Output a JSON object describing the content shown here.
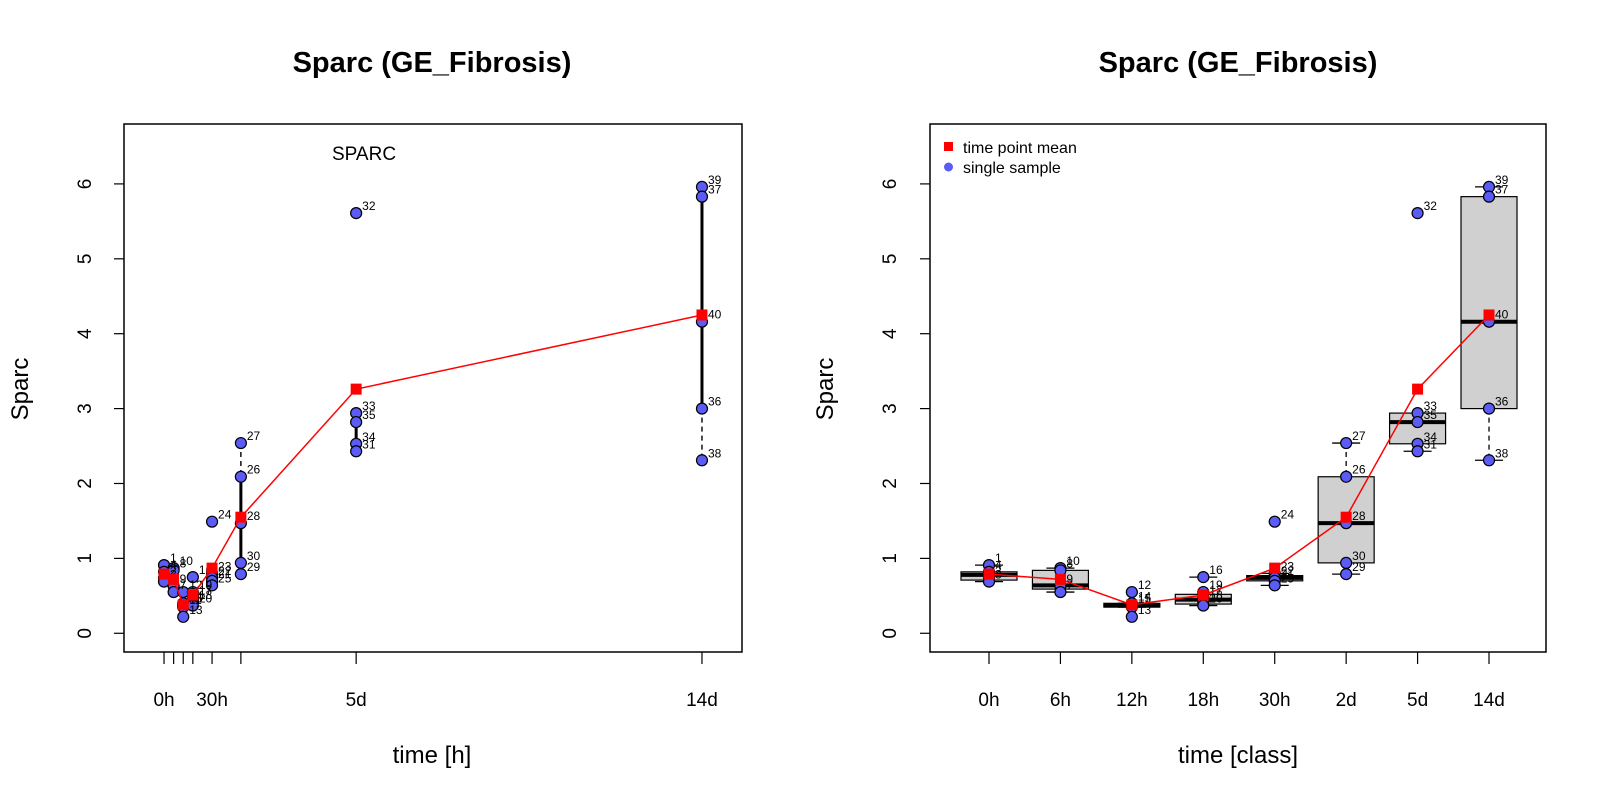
{
  "chart_data": [
    {
      "type": "scatter",
      "title": "Sparc (GE_Fibrosis)",
      "xlabel": "time [h]",
      "ylabel": "Sparc",
      "annotation": "SPARC",
      "ylim": [
        -0.25,
        6.8
      ],
      "xlim": [
        -25,
        361
      ],
      "y_ticks": [
        0,
        1,
        2,
        3,
        4,
        5,
        6
      ],
      "x_ticks": [
        {
          "x": 0,
          "label": "0h"
        },
        {
          "x": 6,
          "label": ""
        },
        {
          "x": 12,
          "label": ""
        },
        {
          "x": 18,
          "label": ""
        },
        {
          "x": 30,
          "label": "30h"
        },
        {
          "x": 48,
          "label": ""
        },
        {
          "x": 120,
          "label": "5d"
        },
        {
          "x": 336,
          "label": "14d"
        }
      ],
      "series": [
        {
          "name": "single sample",
          "color": "#5b5bf5",
          "points": [
            {
              "x": 0,
              "y": 0.91,
              "label": "1"
            },
            {
              "x": 0,
              "y": 0.82,
              "label": "4"
            },
            {
              "x": 0,
              "y": 0.74,
              "label": "2"
            },
            {
              "x": 0,
              "y": 0.69,
              "label": "3"
            },
            {
              "x": 6,
              "y": 0.87,
              "label": "10"
            },
            {
              "x": 6,
              "y": 0.84,
              "label": "8"
            },
            {
              "x": 6,
              "y": 0.63,
              "label": "9"
            },
            {
              "x": 6,
              "y": 0.55,
              "label": "7"
            },
            {
              "x": 12,
              "y": 0.55,
              "label": "12"
            },
            {
              "x": 12,
              "y": 0.4,
              "label": "14"
            },
            {
              "x": 12,
              "y": 0.37,
              "label": "15"
            },
            {
              "x": 12,
              "y": 0.35,
              "label": "11"
            },
            {
              "x": 12,
              "y": 0.22,
              "label": "13"
            },
            {
              "x": 18,
              "y": 0.75,
              "label": "16"
            },
            {
              "x": 18,
              "y": 0.55,
              "label": "19"
            },
            {
              "x": 18,
              "y": 0.48,
              "label": "17"
            },
            {
              "x": 18,
              "y": 0.42,
              "label": "18"
            },
            {
              "x": 18,
              "y": 0.37,
              "label": "20"
            },
            {
              "x": 30,
              "y": 1.49,
              "label": "24"
            },
            {
              "x": 30,
              "y": 0.8,
              "label": "23"
            },
            {
              "x": 30,
              "y": 0.74,
              "label": "22"
            },
            {
              "x": 30,
              "y": 0.7,
              "label": "21"
            },
            {
              "x": 30,
              "y": 0.64,
              "label": "25"
            },
            {
              "x": 48,
              "y": 2.54,
              "label": "27"
            },
            {
              "x": 48,
              "y": 2.09,
              "label": "26"
            },
            {
              "x": 48,
              "y": 1.47,
              "label": "28"
            },
            {
              "x": 48,
              "y": 0.94,
              "label": "30"
            },
            {
              "x": 48,
              "y": 0.79,
              "label": "29"
            },
            {
              "x": 120,
              "y": 5.61,
              "label": "32"
            },
            {
              "x": 120,
              "y": 2.94,
              "label": "33"
            },
            {
              "x": 120,
              "y": 2.82,
              "label": "35"
            },
            {
              "x": 120,
              "y": 2.53,
              "label": "34"
            },
            {
              "x": 120,
              "y": 2.43,
              "label": "31"
            },
            {
              "x": 336,
              "y": 5.96,
              "label": "39"
            },
            {
              "x": 336,
              "y": 5.83,
              "label": "37"
            },
            {
              "x": 336,
              "y": 4.16,
              "label": "40"
            },
            {
              "x": 336,
              "y": 3.0,
              "label": "36"
            },
            {
              "x": 336,
              "y": 2.31,
              "label": "38"
            }
          ]
        },
        {
          "name": "time point mean",
          "color": "#ff0000",
          "points": [
            {
              "x": 0,
              "y": 0.79
            },
            {
              "x": 6,
              "y": 0.72
            },
            {
              "x": 12,
              "y": 0.38
            },
            {
              "x": 18,
              "y": 0.51
            },
            {
              "x": 30,
              "y": 0.87
            },
            {
              "x": 48,
              "y": 1.55
            },
            {
              "x": 120,
              "y": 3.26
            },
            {
              "x": 336,
              "y": 4.25
            }
          ]
        }
      ],
      "whiskers": [
        {
          "x": 48,
          "lo": 0.79,
          "q1": 0.94,
          "q3": 2.09,
          "hi": 2.54
        },
        {
          "x": 120,
          "lo": 2.43,
          "q1": 2.53,
          "q3": 2.94,
          "hi": 2.94
        },
        {
          "x": 336,
          "lo": 2.31,
          "q1": 3.0,
          "q3": 5.83,
          "hi": 5.96
        }
      ]
    },
    {
      "type": "box",
      "title": "Sparc (GE_Fibrosis)",
      "xlabel": "time [class]",
      "ylabel": "Sparc",
      "ylim": [
        -0.25,
        6.8
      ],
      "y_ticks": [
        0,
        1,
        2,
        3,
        4,
        5,
        6
      ],
      "categories": [
        "0h",
        "6h",
        "12h",
        "18h",
        "30h",
        "2d",
        "5d",
        "14d"
      ],
      "legend": {
        "position": "top-left",
        "entries": [
          {
            "label": "time point mean",
            "color": "#ff0000",
            "marker": "square"
          },
          {
            "label": "single sample",
            "color": "#5b5bf5",
            "marker": "circle"
          }
        ]
      },
      "boxes": [
        {
          "lo": 0.69,
          "q1": 0.71,
          "median": 0.78,
          "q3": 0.82,
          "hi": 0.91
        },
        {
          "lo": 0.55,
          "q1": 0.59,
          "median": 0.64,
          "q3": 0.84,
          "hi": 0.87
        },
        {
          "lo": 0.35,
          "q1": 0.35,
          "median": 0.37,
          "q3": 0.4,
          "hi": 0.4
        },
        {
          "lo": 0.37,
          "q1": 0.39,
          "median": 0.45,
          "q3": 0.52,
          "hi": 0.75
        },
        {
          "lo": 0.64,
          "q1": 0.7,
          "median": 0.74,
          "q3": 0.77,
          "hi": 0.8
        },
        {
          "lo": 0.79,
          "q1": 0.94,
          "median": 1.47,
          "q3": 2.09,
          "hi": 2.54
        },
        {
          "lo": 2.43,
          "q1": 2.53,
          "median": 2.82,
          "q3": 2.94,
          "hi": 2.94
        },
        {
          "lo": 2.31,
          "q1": 3.0,
          "median": 4.16,
          "q3": 5.83,
          "hi": 5.96
        }
      ]
    }
  ]
}
